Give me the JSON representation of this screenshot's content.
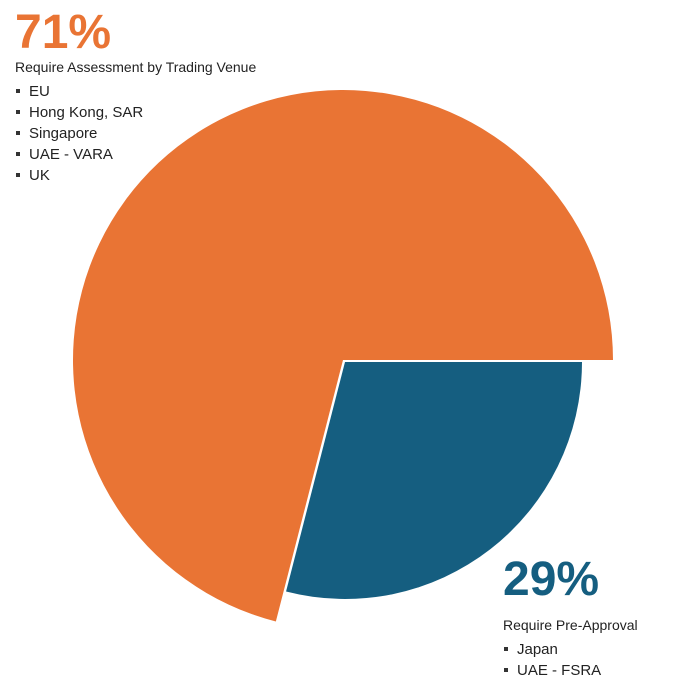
{
  "chart_data": {
    "type": "pie",
    "categories": [
      "Require Assessment by Trading Venue",
      "Require Pre-Approval"
    ],
    "values": [
      71,
      29
    ],
    "value_labels": [
      "71%",
      "29%"
    ],
    "colors": [
      "#e97434",
      "#155e80"
    ],
    "items": [
      [
        "EU",
        "Hong Kong, SAR",
        "Singapore",
        "UAE - VARA",
        "UK"
      ],
      [
        "Japan",
        "UAE - FSRA"
      ]
    ]
  }
}
